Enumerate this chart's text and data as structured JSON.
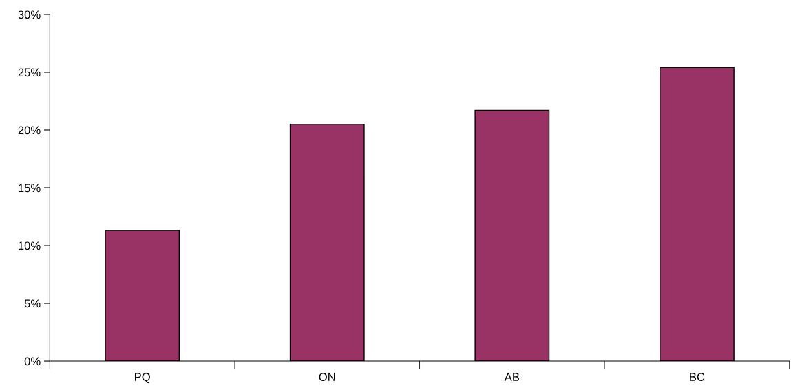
{
  "chart_data": {
    "type": "bar",
    "categories": [
      "PQ",
      "ON",
      "AB",
      "BC"
    ],
    "values": [
      11.3,
      20.5,
      21.7,
      25.4
    ],
    "color": "#993366",
    "ylim": [
      0,
      30
    ],
    "yticks": [
      {
        "value": 0,
        "label": "0%"
      },
      {
        "value": 5,
        "label": "5%"
      },
      {
        "value": 10,
        "label": "10%"
      },
      {
        "value": 15,
        "label": "15%"
      },
      {
        "value": 20,
        "label": "20%"
      },
      {
        "value": 25,
        "label": "25%"
      },
      {
        "value": 30,
        "label": "30%"
      }
    ],
    "grid": false,
    "legend": false
  }
}
